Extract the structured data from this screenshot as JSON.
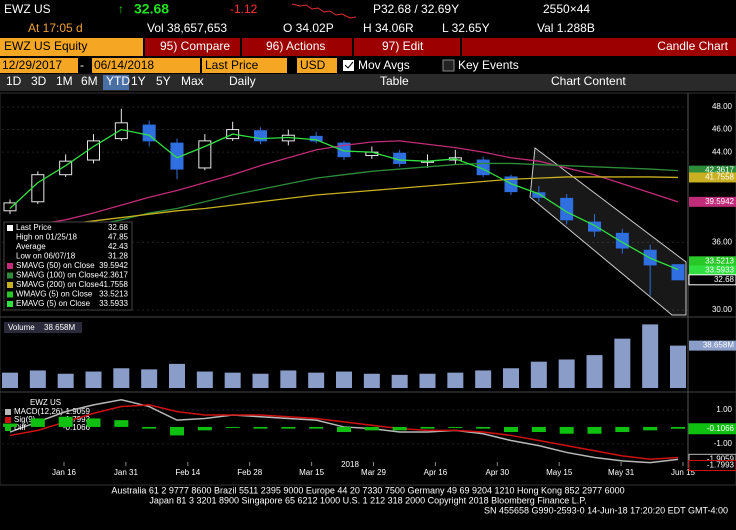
{
  "header": {
    "ticker": "EWZ US",
    "last": "32.68",
    "change": "-1.12",
    "bid_ask": "P32.68 / 32.69Y",
    "size": "2550×44",
    "time": "At 17:05 d",
    "volume": "Vol 38,657,653",
    "open": "O 34.02P",
    "high": "H 34.06R",
    "low": "L 32.65Y",
    "value": "Val 1.288B"
  },
  "toolbar": {
    "security": "EWZ US Equity",
    "compare": "95) Compare",
    "actions": "96) Actions",
    "edit": "97) Edit",
    "view": "Candle Chart",
    "start_date": "12/29/2017",
    "end_date": "06/14/2018",
    "field": "Last Price",
    "currency": "USD",
    "mov_avgs": "Mov Avgs",
    "key_events": "Key Events",
    "periods": [
      "1D",
      "3D",
      "1M",
      "6M",
      "YTD",
      "1Y",
      "5Y",
      "Max"
    ],
    "frequency": "Daily",
    "table": "Table",
    "chart_content": "Chart Content"
  },
  "legend": [
    {
      "label": "Last Price",
      "value": "32.68"
    },
    {
      "label": "High on 01/25/18",
      "value": "47.85"
    },
    {
      "label": "Average",
      "value": "42.43"
    },
    {
      "label": "Low on 06/07/18",
      "value": "31.28"
    }
  ],
  "chart_data": [
    {
      "type": "candlestick",
      "open": [
        38.8,
        39.6,
        42.0,
        43.3,
        45.2,
        46.4,
        44.8,
        42.6,
        45.2,
        45.9,
        45.0,
        45.4,
        44.8,
        43.7,
        43.9,
        43.1,
        43.3,
        43.3,
        41.8,
        40.4,
        39.9,
        37.8,
        36.8,
        35.3,
        34.02
      ],
      "high": [
        39.8,
        42.3,
        43.8,
        45.6,
        47.85,
        46.8,
        45.2,
        45.6,
        46.7,
        46.2,
        46.0,
        45.8,
        45.0,
        44.5,
        44.2,
        43.8,
        44.2,
        43.6,
        42.0,
        41.0,
        40.3,
        38.5,
        37.2,
        35.8,
        34.06
      ],
      "low": [
        38.5,
        39.4,
        41.8,
        43.0,
        45.0,
        44.5,
        41.6,
        42.4,
        45.0,
        44.7,
        44.6,
        44.8,
        43.3,
        43.4,
        42.7,
        42.6,
        42.9,
        41.8,
        40.2,
        39.6,
        37.6,
        36.5,
        35.0,
        31.28,
        32.65
      ],
      "close": [
        39.5,
        42.0,
        43.2,
        45.0,
        46.6,
        45.0,
        42.5,
        45.0,
        46.0,
        45.0,
        45.5,
        45.0,
        43.6,
        44.0,
        43.0,
        43.2,
        43.5,
        42.0,
        40.5,
        40.0,
        38.0,
        37.0,
        35.5,
        34.0,
        32.68
      ],
      "up_color": "#e8e8e8",
      "down_color": "#2f6fe0",
      "series": [
        {
          "name": "SMAVG (50) on Close",
          "last_value": "39.5942",
          "color": "#c02c78",
          "values": [
            37.2,
            37.6,
            38.0,
            38.6,
            39.3,
            40.0,
            40.6,
            41.3,
            42.0,
            42.8,
            43.5,
            44.2,
            44.6,
            44.9,
            45.0,
            44.7,
            44.4,
            44.0,
            43.5,
            43.2,
            42.6,
            42.0,
            41.2,
            40.4,
            39.5942
          ]
        },
        {
          "name": "SMAVG (100) on Close",
          "last_value": "42.3617",
          "color": "#2e8b3a",
          "values": [
            36.0,
            36.5,
            37.0,
            37.5,
            38.0,
            38.6,
            39.0,
            39.6,
            40.2,
            40.7,
            41.2,
            41.7,
            42.0,
            42.3,
            42.5,
            42.7,
            42.9,
            43.0,
            43.0,
            42.9,
            42.8,
            42.7,
            42.6,
            42.5,
            42.3617
          ]
        },
        {
          "name": "SMAVG (200) on Close",
          "last_value": "41.7558",
          "color": "#c8b020",
          "values": [
            37.0,
            37.3,
            37.6,
            37.9,
            38.2,
            38.5,
            38.8,
            39.0,
            39.3,
            39.6,
            39.9,
            40.2,
            40.4,
            40.6,
            40.8,
            41.0,
            41.2,
            41.4,
            41.6,
            41.7,
            41.8,
            41.8,
            41.8,
            41.8,
            41.7558
          ]
        },
        {
          "name": "WMAVG (5) on Close",
          "last_value": "33.5213",
          "color": "#28c828",
          "values": null
        },
        {
          "name": "EMAVG (5) on Close",
          "last_value": "33.5933",
          "color": "#30e040",
          "values": [
            39.0,
            41.3,
            42.8,
            44.5,
            46.0,
            45.5,
            43.5,
            44.5,
            45.6,
            45.2,
            45.3,
            45.1,
            44.1,
            44.0,
            43.3,
            43.2,
            43.4,
            42.5,
            41.2,
            40.3,
            38.7,
            37.5,
            36.0,
            34.6,
            33.5933
          ]
        }
      ],
      "ylim": [
        29.56,
        48.89
      ],
      "yticks": [
        {
          "value": 48,
          "label": "48.00"
        },
        {
          "value": 46,
          "label": "46.00"
        },
        {
          "value": 44,
          "label": "44.00"
        },
        {
          "value": 36,
          "label": "36.00"
        },
        {
          "value": 30,
          "label": "30.00"
        }
      ],
      "xtick_labels": [
        "Jan 16",
        "Jan 31",
        "Feb 14",
        "Feb 28",
        "Mar 15",
        "Mar 29",
        "Apr 16",
        "Apr 30",
        "May 15",
        "May 31",
        "Jun 15"
      ],
      "year_label": "2018",
      "grid": true
    },
    {
      "type": "bar",
      "title": "Volume",
      "last_label": "38.658M",
      "color": "#8a9cc8",
      "values": [
        14,
        16,
        13,
        15,
        18,
        17,
        22,
        15,
        14,
        13,
        16,
        14,
        15,
        13,
        12,
        13,
        14,
        16,
        18,
        24,
        26,
        30,
        45,
        58,
        38.658
      ],
      "ylim": [
        0,
        62
      ]
    },
    {
      "type": "line",
      "title": "EWZ US",
      "series": [
        {
          "name": "MACD(12,26)",
          "last_value": "-1.9059",
          "color": "#b8b8b8",
          "values": [
            -0.3,
            0.3,
            0.9,
            1.3,
            1.6,
            1.2,
            0.4,
            0.5,
            0.7,
            0.6,
            0.5,
            0.4,
            0.0,
            -0.1,
            -0.3,
            -0.3,
            -0.2,
            -0.4,
            -0.8,
            -1.1,
            -1.5,
            -1.8,
            -2.0,
            -2.1,
            -1.9059
          ]
        },
        {
          "name": "Sig(9)",
          "last_value": "-1.7993",
          "color": "#d01010",
          "values": [
            -0.5,
            -0.2,
            0.3,
            0.8,
            1.2,
            1.3,
            0.9,
            0.7,
            0.7,
            0.7,
            0.6,
            0.5,
            0.3,
            0.1,
            -0.1,
            -0.2,
            -0.2,
            -0.3,
            -0.5,
            -0.8,
            -1.1,
            -1.4,
            -1.7,
            -1.9,
            -1.7993
          ]
        },
        {
          "name": "Diff",
          "last_value": "-0.1066",
          "color": "#10c010",
          "values": [
            0.2,
            0.5,
            0.6,
            0.5,
            0.4,
            -0.1,
            -0.5,
            -0.2,
            0.0,
            -0.1,
            -0.1,
            -0.1,
            -0.3,
            -0.2,
            -0.2,
            -0.1,
            0.0,
            -0.1,
            -0.3,
            -0.3,
            -0.4,
            -0.4,
            -0.3,
            -0.2,
            -0.1066
          ]
        }
      ],
      "ylim": [
        -2.24,
        1.88
      ],
      "yticks": [
        {
          "value": 1,
          "label": "1.00"
        },
        {
          "value": -1,
          "label": "-1.00"
        }
      ]
    }
  ],
  "footer": {
    "line1": "Australia 61 2 9777 8600 Brazil 5511 2395 9000 Europe 44 20 7330 7500 Germany 49 69 9204 1210 Hong Kong 852 2977 6000",
    "line2": "Japan 81 3 3201 8900        Singapore 65 6212 1000        U.S. 1 212 318 2000        Copyright 2018 Bloomberg Finance L.P.",
    "line3": "SN 455658 G990-2593-0 14-Jun-18 17:20:20 EDT  GMT-4:00"
  }
}
